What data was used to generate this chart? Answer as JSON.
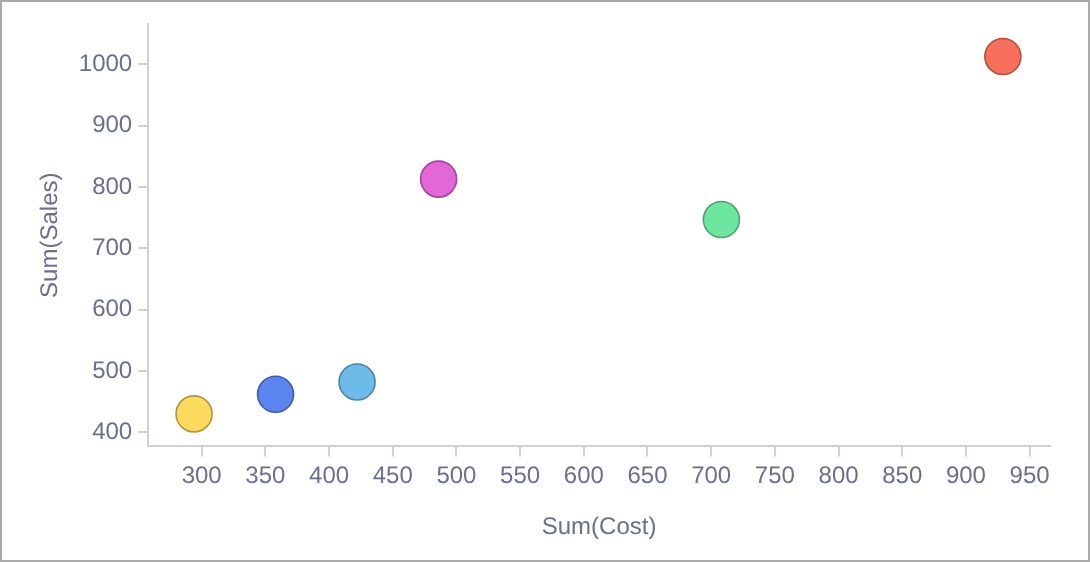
{
  "chart_data": {
    "type": "scatter",
    "xlabel": "Sum(Cost)",
    "ylabel": "Sum(Sales)",
    "xlim": [
      258,
      966
    ],
    "xticks": [
      300,
      350,
      400,
      450,
      500,
      550,
      600,
      650,
      700,
      750,
      800,
      850,
      900,
      950
    ],
    "ylim": [
      377,
      1066
    ],
    "yticks": [
      400,
      500,
      600,
      700,
      800,
      900,
      1000
    ],
    "grid": false,
    "legend": false,
    "marker": "circle",
    "series": [
      {
        "x": [
          294,
          358,
          422,
          486,
          708,
          929
        ],
        "values": [
          430,
          462,
          482,
          813,
          747,
          1013
        ],
        "colors": [
          "#fdd95c",
          "#5b84f0",
          "#6cbbe9",
          "#e467d8",
          "#6de6a0",
          "#f8705c"
        ]
      }
    ]
  }
}
